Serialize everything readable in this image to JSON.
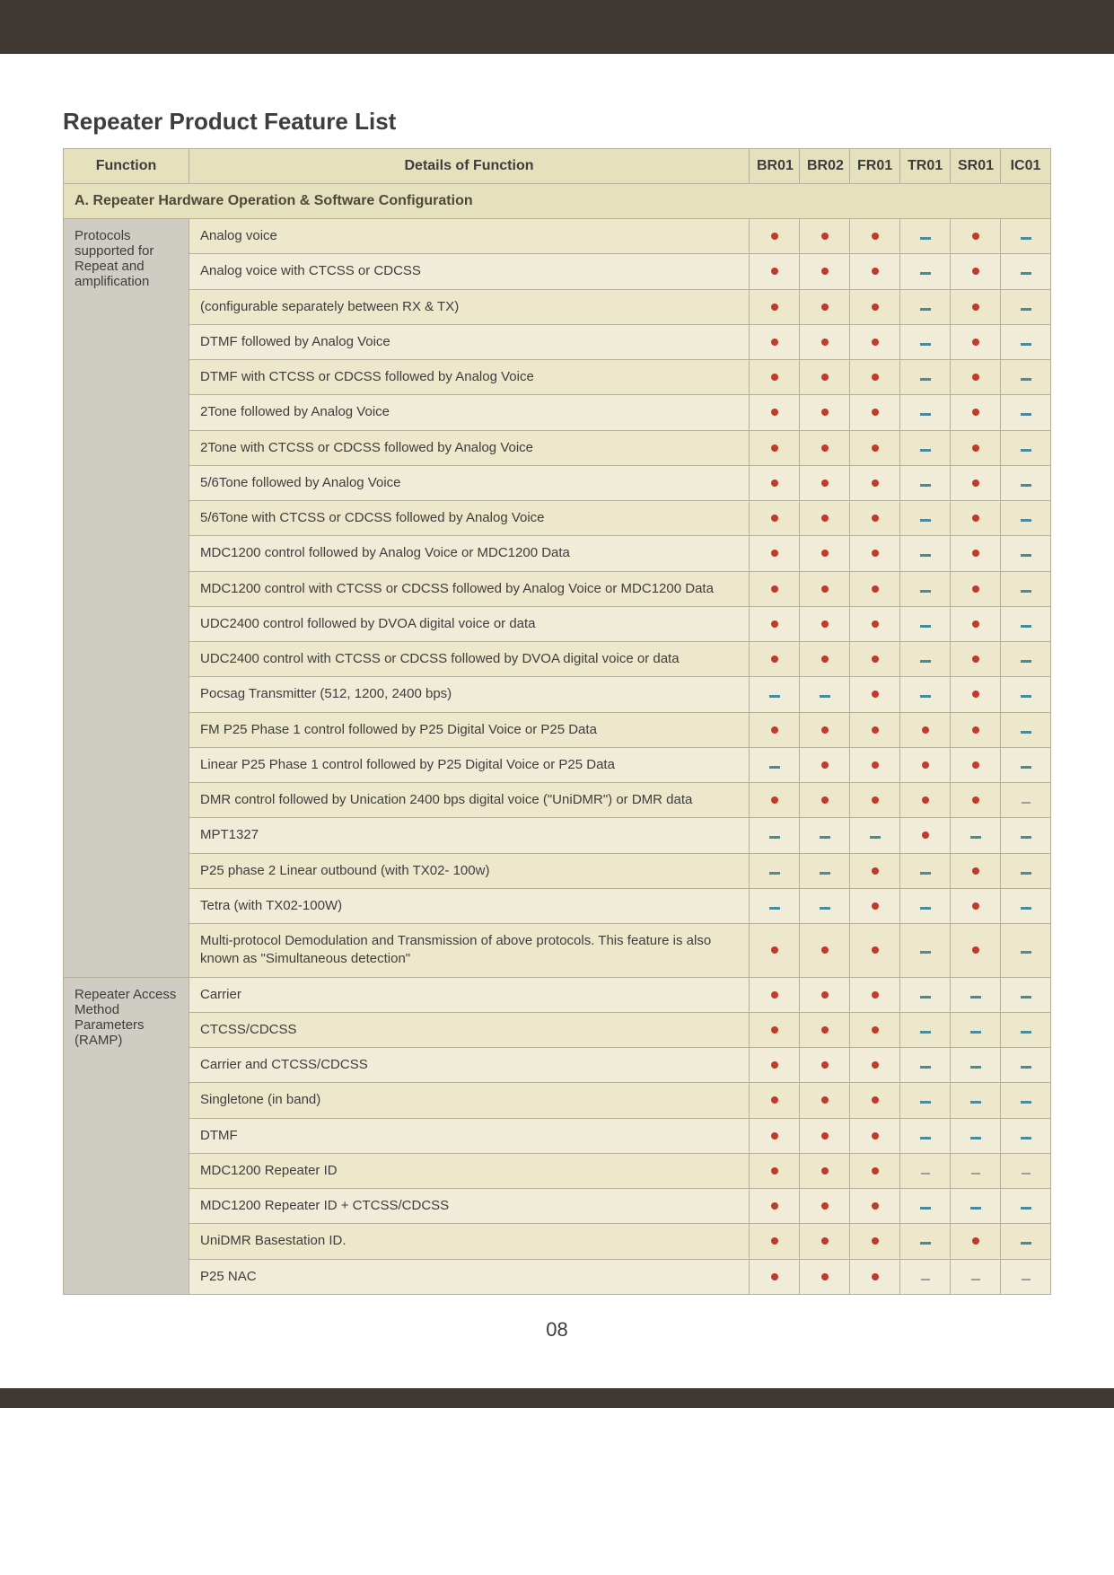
{
  "page": {
    "title": "Repeater Product Feature List",
    "number": "08"
  },
  "columns": {
    "func": "Function",
    "detail": "Details of Function",
    "marks": [
      "BR01",
      "BR02",
      "FR01",
      "TR01",
      "SR01",
      "IC01"
    ]
  },
  "section_a": {
    "title": "A. Repeater Hardware Operation & Software Configuration"
  },
  "groups": [
    {
      "label": "Protocols supported for Repeat and amplification",
      "rows": [
        {
          "detail": "Analog voice",
          "m": [
            "dot",
            "dot",
            "dot",
            "dash",
            "dot",
            "dash"
          ]
        },
        {
          "detail": "Analog voice with CTCSS or CDCSS",
          "m": [
            "dot",
            "dot",
            "dot",
            "dash",
            "dot",
            "dash"
          ]
        },
        {
          "detail": "(configurable separately between RX & TX)",
          "m": [
            "dot",
            "dot",
            "dot",
            "dash",
            "dot",
            "dash"
          ]
        },
        {
          "detail": "DTMF followed by Analog Voice",
          "m": [
            "dot",
            "dot",
            "dot",
            "dash",
            "dot",
            "dash"
          ]
        },
        {
          "detail": "DTMF with CTCSS or CDCSS followed by Analog Voice",
          "m": [
            "dot",
            "dot",
            "dot",
            "dash",
            "dot",
            "dash"
          ]
        },
        {
          "detail": "2Tone followed by Analog Voice",
          "m": [
            "dot",
            "dot",
            "dot",
            "dash",
            "dot",
            "dash"
          ]
        },
        {
          "detail": "2Tone with CTCSS or CDCSS followed by Analog Voice",
          "m": [
            "dot",
            "dot",
            "dot",
            "dash",
            "dot",
            "dash"
          ]
        },
        {
          "detail": "5/6Tone followed by Analog Voice",
          "m": [
            "dot",
            "dot",
            "dot",
            "dash",
            "dot",
            "dash"
          ]
        },
        {
          "detail": "5/6Tone with CTCSS or CDCSS followed by Analog Voice",
          "m": [
            "dot",
            "dot",
            "dot",
            "dash",
            "dot",
            "dash"
          ]
        },
        {
          "detail": "MDC1200 control followed by Analog Voice or MDC1200 Data",
          "m": [
            "dot",
            "dot",
            "dot",
            "dash",
            "dot",
            "dash"
          ]
        },
        {
          "detail": "MDC1200 control with CTCSS or CDCSS followed by Analog Voice or MDC1200 Data",
          "m": [
            "dot",
            "dot",
            "dot",
            "dash",
            "dot",
            "dash"
          ]
        },
        {
          "detail": "UDC2400 control followed by DVOA digital voice or data",
          "m": [
            "dot",
            "dot",
            "dot",
            "dash",
            "dot",
            "dash"
          ]
        },
        {
          "detail": "UDC2400 control with CTCSS or CDCSS followed by DVOA digital voice or data",
          "m": [
            "dot",
            "dot",
            "dot",
            "dash",
            "dot",
            "dash"
          ]
        },
        {
          "detail": "Pocsag Transmitter (512, 1200, 2400 bps)",
          "m": [
            "dash",
            "dash",
            "dot",
            "dash",
            "dot",
            "dash"
          ]
        },
        {
          "detail": "FM P25 Phase 1 control followed by P25 Digital Voice or P25 Data",
          "m": [
            "dot",
            "dot",
            "dot",
            "dot",
            "dot",
            "dash"
          ]
        },
        {
          "detail": "Linear P25 Phase 1 control followed by P25 Digital Voice or P25 Data",
          "m": [
            "dash",
            "dot",
            "dot",
            "dot",
            "dot",
            "dash"
          ]
        },
        {
          "detail": "DMR control followed by Unication 2400 bps digital voice (\"UniDMR\") or DMR data",
          "m": [
            "dot",
            "dot",
            "dot",
            "dot",
            "dot",
            "gdash"
          ]
        },
        {
          "detail": "MPT1327",
          "m": [
            "dash",
            "dash",
            "dash",
            "dot",
            "dash",
            "dash"
          ]
        },
        {
          "detail": "P25 phase 2 Linear outbound (with TX02- 100w)",
          "m": [
            "dash",
            "dash",
            "dot",
            "dash",
            "dot",
            "dash"
          ]
        },
        {
          "detail": "Tetra (with TX02-100W)",
          "m": [
            "dash",
            "dash",
            "dot",
            "dash",
            "dot",
            "dash"
          ]
        },
        {
          "detail": "Multi-protocol Demodulation and Transmission of above protocols. This feature is also known as \"Simultaneous detection\"",
          "m": [
            "dot",
            "dot",
            "dot",
            "dash",
            "dot",
            "dash"
          ]
        }
      ]
    },
    {
      "label": "Repeater Access Method Parameters (RAMP)",
      "rows": [
        {
          "detail": "Carrier",
          "m": [
            "dot",
            "dot",
            "dot",
            "dash",
            "dash",
            "dash"
          ]
        },
        {
          "detail": "CTCSS/CDCSS",
          "m": [
            "dot",
            "dot",
            "dot",
            "dash",
            "dash",
            "dash"
          ]
        },
        {
          "detail": "Carrier and CTCSS/CDCSS",
          "m": [
            "dot",
            "dot",
            "dot",
            "dash",
            "dash",
            "dash"
          ]
        },
        {
          "detail": "Singletone (in band)",
          "m": [
            "dot",
            "dot",
            "dot",
            "dash",
            "dash",
            "dash"
          ]
        },
        {
          "detail": "DTMF",
          "m": [
            "dot",
            "dot",
            "dot",
            "dash",
            "dash",
            "dash"
          ]
        },
        {
          "detail": "MDC1200 Repeater ID",
          "m": [
            "dot",
            "dot",
            "dot",
            "gdash",
            "gdash",
            "gdash"
          ]
        },
        {
          "detail": "MDC1200 Repeater ID + CTCSS/CDCSS",
          "m": [
            "dot",
            "dot",
            "dot",
            "dash",
            "dash",
            "dash"
          ]
        },
        {
          "detail": "UniDMR Basestation ID.",
          "m": [
            "dot",
            "dot",
            "dot",
            "dash",
            "dot",
            "dash"
          ]
        },
        {
          "detail": "P25 NAC",
          "m": [
            "dot",
            "dot",
            "dot",
            "gdash",
            "gdash",
            "gdash"
          ]
        }
      ]
    }
  ]
}
